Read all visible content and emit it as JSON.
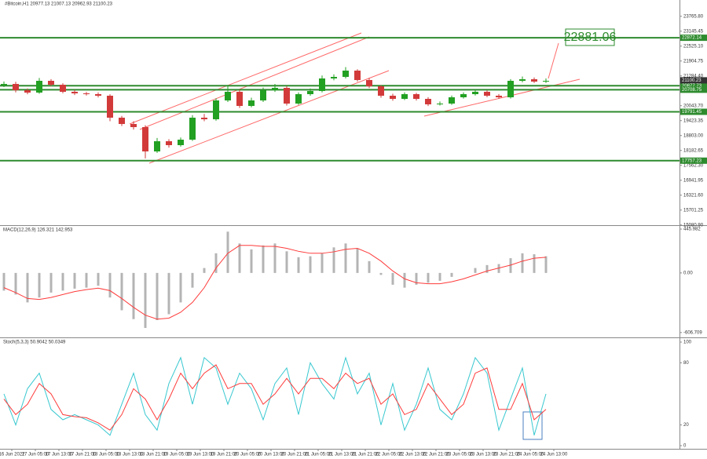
{
  "chart_data": [
    {
      "type": "candlestick",
      "title": "#Bitcoin,H1 20977.13 21007.13 20962.93 21100.23",
      "up_color": "#22a022",
      "down_color": "#d23a3a",
      "open": [
        20900,
        20950,
        20688,
        20590,
        21080,
        20917,
        20623,
        20558,
        20525,
        20460,
        19546,
        19284,
        19154,
        18142,
        18566,
        18403,
        18631,
        19546,
        19480,
        20264,
        20623,
        20035,
        20264,
        20688,
        20786,
        20133,
        20525,
        20656,
        21178,
        21243,
        21505,
        21113,
        20852,
        20460,
        20329,
        20525,
        20329,
        20101,
        20133,
        20395,
        20525,
        20623,
        20460,
        20395,
        21080,
        21146,
        21048
      ],
      "high": [
        21050,
        21040,
        20760,
        21200,
        21150,
        20980,
        20700,
        20620,
        20600,
        20520,
        19620,
        19400,
        19230,
        18700,
        18650,
        18720,
        19650,
        19700,
        20350,
        20900,
        20700,
        20380,
        20800,
        20950,
        20860,
        20600,
        20760,
        21300,
        21350,
        21650,
        21560,
        21200,
        20900,
        20540,
        20600,
        20580,
        20400,
        20220,
        20470,
        20600,
        20720,
        20680,
        20530,
        21150,
        21260,
        21220,
        21180
      ],
      "low": [
        20820,
        20600,
        20520,
        20540,
        20860,
        20560,
        20490,
        20470,
        20390,
        19400,
        19200,
        19050,
        17850,
        18080,
        18300,
        18340,
        18580,
        19400,
        19420,
        20200,
        19950,
        19980,
        20200,
        20620,
        20050,
        20080,
        20460,
        20600,
        21100,
        21180,
        21050,
        20780,
        20380,
        20250,
        20280,
        20260,
        20030,
        20050,
        20080,
        20340,
        20470,
        20400,
        20330,
        20340,
        21020,
        20990,
        20990
      ],
      "close": [
        20950,
        20688,
        20590,
        21080,
        20917,
        20623,
        20558,
        20525,
        20460,
        19546,
        19284,
        19154,
        18142,
        18566,
        18403,
        18631,
        19546,
        19480,
        20264,
        20623,
        20035,
        20264,
        20688,
        20786,
        20133,
        20525,
        20656,
        21178,
        21243,
        21505,
        21113,
        20852,
        20460,
        20329,
        20525,
        20329,
        20101,
        20133,
        20395,
        20525,
        20623,
        20460,
        20395,
        21080,
        21146,
        21048,
        21080
      ],
      "ylim": [
        15072.6,
        24443.15
      ],
      "yticks": [
        {
          "value": 15080.9,
          "label": "15080.90"
        },
        15701.25,
        {
          "value": 16321.6,
          "label": "16321.60"
        },
        16941.95,
        {
          "value": 17562.3,
          "label": "17562.30"
        },
        18182.65,
        {
          "value": 18803,
          "label": "18803.00"
        },
        19423.35,
        {
          "value": 20043.7,
          "label": "20043.70"
        },
        {
          "value": 21284.4,
          "label": "21284.40"
        },
        21904.75,
        {
          "value": 22525.1,
          "label": "22525.10"
        },
        23145.45,
        {
          "value": 23765.8,
          "label": "23765.80"
        }
      ],
      "levels": [
        22872.14,
        20877.73,
        20708.75,
        19791.45,
        17757.23
      ],
      "level_color": "#2e8b2e",
      "current_price": 21100.23,
      "annotation": 22881.06
    },
    {
      "type": "macd",
      "title": "MACD(12,26,9) 126.321 142.953",
      "histogram": [
        -180,
        -220,
        -300,
        -250,
        -200,
        -180,
        -160,
        -150,
        -130,
        -250,
        -380,
        -470,
        -560,
        -480,
        -420,
        -300,
        -150,
        50,
        200,
        420,
        300,
        240,
        280,
        300,
        220,
        160,
        170,
        200,
        260,
        300,
        250,
        120,
        -20,
        -120,
        -150,
        -120,
        -100,
        -80,
        -40,
        0,
        50,
        80,
        90,
        150,
        200,
        190,
        170
      ],
      "signal": [
        -150,
        -200,
        -260,
        -270,
        -250,
        -220,
        -190,
        -170,
        -155,
        -180,
        -260,
        -350,
        -430,
        -470,
        -460,
        -400,
        -300,
        -150,
        50,
        200,
        280,
        280,
        270,
        270,
        250,
        220,
        200,
        200,
        215,
        240,
        250,
        200,
        120,
        20,
        -60,
        -100,
        -110,
        -110,
        -90,
        -60,
        -20,
        20,
        50,
        80,
        120,
        150,
        160
      ],
      "histogram_color": "#b4b4b4",
      "signal_color": "#ff3b3b",
      "ylim": [
        -640,
        478
      ],
      "yticks": [
        445.982,
        {
          "value": 0,
          "label": "0.00"
        },
        -606.709
      ]
    },
    {
      "type": "stochastic",
      "title": "Stoch(5,3,3) 50.9042 50.0349",
      "series": [
        {
          "color": "#38c8d0",
          "values": [
            50,
            20,
            55,
            70,
            35,
            25,
            30,
            25,
            20,
            10,
            40,
            70,
            30,
            15,
            60,
            85,
            40,
            85,
            75,
            40,
            70,
            55,
            25,
            60,
            75,
            30,
            80,
            60,
            45,
            85,
            50,
            70,
            20,
            60,
            15,
            40,
            75,
            35,
            25,
            50,
            85,
            70,
            15,
            45,
            75,
            10,
            50
          ]
        },
        {
          "color": "#ff3b3b",
          "values": [
            45,
            30,
            40,
            60,
            50,
            30,
            28,
            27,
            22,
            15,
            30,
            55,
            45,
            25,
            45,
            70,
            55,
            70,
            78,
            55,
            60,
            60,
            40,
            50,
            65,
            50,
            65,
            65,
            55,
            70,
            60,
            65,
            40,
            50,
            30,
            35,
            60,
            45,
            30,
            40,
            70,
            75,
            35,
            35,
            60,
            25,
            35
          ]
        }
      ],
      "ylim": [
        0,
        100
      ],
      "yticks": [
        100,
        80,
        20,
        0
      ],
      "x_labels": [
        "16 Jun 2022",
        "17 Jun 05:00",
        "17 Jun 13:00",
        "17 Jun 21:00",
        "18 Jun 05:00",
        "18 Jun 13:00",
        "18 Jun 21:00",
        "19 Jun 05:00",
        "19 Jun 13:00",
        "19 Jun 21:00",
        "20 Jun 05:00",
        "20 Jun 13:00",
        "20 Jun 21:00",
        "21 Jun 05:00",
        "21 Jun 13:00",
        "21 Jun 21:00",
        "22 Jun 05:00",
        "22 Jun 13:00",
        "22 Jun 21:00",
        "23 Jun 05:00",
        "23 Jun 13:00",
        "23 Jun 21:00",
        "24 Jun 05:00",
        "24 Jun 13:00"
      ]
    }
  ]
}
